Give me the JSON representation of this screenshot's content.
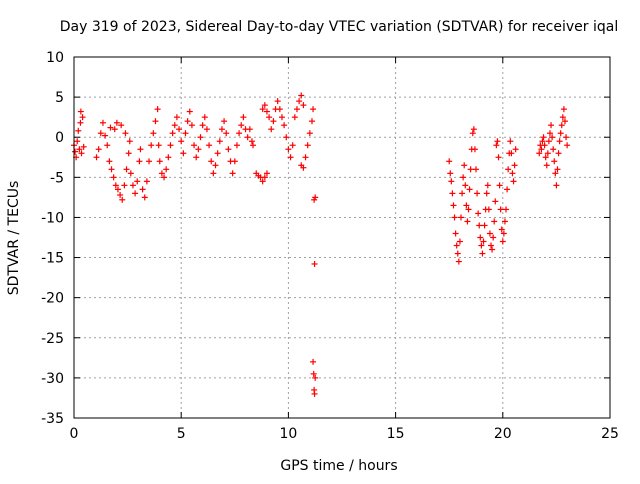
{
  "chart_data": {
    "type": "scatter",
    "title": "Day 319 of 2023, Sidereal Day-to-day VTEC variation (SDTVAR) for receiver iqal",
    "xlabel": "GPS time / hours",
    "ylabel": "SDTVAR / TECUs",
    "xlim": [
      0,
      25
    ],
    "ylim": [
      -35,
      10
    ],
    "xticks": [
      0,
      5,
      10,
      15,
      20,
      25
    ],
    "yticks": [
      10,
      5,
      0,
      -5,
      -10,
      -15,
      -20,
      -25,
      -30,
      -35
    ],
    "grid": true,
    "marker": "+",
    "series": [
      {
        "name": "SDTVAR",
        "color": "#ff0000",
        "points": [
          [
            0.0,
            -1.0
          ],
          [
            0.05,
            -1.8
          ],
          [
            0.1,
            -2.5
          ],
          [
            0.15,
            -0.5
          ],
          [
            0.2,
            0.8
          ],
          [
            0.25,
            -1.5
          ],
          [
            0.3,
            1.8
          ],
          [
            0.32,
            3.2
          ],
          [
            0.35,
            -2.0
          ],
          [
            0.4,
            2.5
          ],
          [
            0.45,
            -1.2
          ],
          [
            1.05,
            -2.5
          ],
          [
            1.15,
            -1.5
          ],
          [
            1.25,
            0.5
          ],
          [
            1.35,
            1.8
          ],
          [
            1.45,
            0.2
          ],
          [
            1.55,
            -1.0
          ],
          [
            1.65,
            -3.0
          ],
          [
            1.75,
            -4.0
          ],
          [
            1.85,
            -5.0
          ],
          [
            1.95,
            -6.0
          ],
          [
            2.05,
            -6.5
          ],
          [
            2.15,
            -7.2
          ],
          [
            2.25,
            -7.8
          ],
          [
            2.35,
            -6.0
          ],
          [
            2.45,
            -4.0
          ],
          [
            2.55,
            -2.0
          ],
          [
            2.65,
            -4.5
          ],
          [
            2.75,
            -6.0
          ],
          [
            2.85,
            -7.0
          ],
          [
            2.95,
            -5.5
          ],
          [
            3.05,
            -3.0
          ],
          [
            3.1,
            -1.5
          ],
          [
            1.7,
            1.2
          ],
          [
            1.9,
            1.0
          ],
          [
            2.0,
            1.8
          ],
          [
            2.2,
            1.5
          ],
          [
            2.4,
            0.5
          ],
          [
            2.6,
            -0.5
          ],
          [
            3.2,
            -6.5
          ],
          [
            3.3,
            -7.5
          ],
          [
            3.4,
            -5.5
          ],
          [
            3.5,
            -3.0
          ],
          [
            3.6,
            -1.0
          ],
          [
            3.7,
            0.5
          ],
          [
            3.8,
            2.0
          ],
          [
            3.9,
            3.5
          ],
          [
            3.95,
            -1.0
          ],
          [
            4.0,
            -3.0
          ],
          [
            4.1,
            -4.5
          ],
          [
            4.2,
            -5.0
          ],
          [
            4.3,
            -4.0
          ],
          [
            4.4,
            -2.5
          ],
          [
            4.5,
            -1.0
          ],
          [
            4.6,
            0.5
          ],
          [
            4.7,
            1.5
          ],
          [
            4.8,
            2.5
          ],
          [
            4.9,
            1.0
          ],
          [
            5.0,
            -0.5
          ],
          [
            5.1,
            -2.0
          ],
          [
            5.2,
            0.5
          ],
          [
            5.3,
            2.0
          ],
          [
            5.4,
            3.2
          ],
          [
            5.5,
            1.5
          ],
          [
            5.6,
            -1.0
          ],
          [
            5.7,
            -2.5
          ],
          [
            5.8,
            -1.5
          ],
          [
            5.9,
            0.0
          ],
          [
            6.0,
            1.5
          ],
          [
            6.1,
            2.5
          ],
          [
            6.2,
            1.0
          ],
          [
            6.3,
            -1.0
          ],
          [
            6.4,
            -3.0
          ],
          [
            6.5,
            -4.5
          ],
          [
            6.6,
            -3.5
          ],
          [
            6.7,
            -2.0
          ],
          [
            6.8,
            -0.5
          ],
          [
            6.9,
            1.0
          ],
          [
            7.0,
            2.0
          ],
          [
            7.1,
            0.5
          ],
          [
            7.2,
            -1.5
          ],
          [
            7.3,
            -3.0
          ],
          [
            7.4,
            -4.5
          ],
          [
            7.5,
            -3.0
          ],
          [
            7.6,
            -1.0
          ],
          [
            7.7,
            0.5
          ],
          [
            7.8,
            1.5
          ],
          [
            7.9,
            2.5
          ],
          [
            8.0,
            1.0
          ],
          [
            8.1,
            0.0
          ],
          [
            8.2,
            1.0
          ],
          [
            8.3,
            -0.5
          ],
          [
            8.35,
            -1.0
          ],
          [
            8.5,
            -4.5
          ],
          [
            8.6,
            -4.8
          ],
          [
            8.7,
            -5.0
          ],
          [
            8.8,
            -5.5
          ],
          [
            8.9,
            -5.0
          ],
          [
            9.0,
            -4.5
          ],
          [
            8.8,
            3.5
          ],
          [
            8.9,
            4.0
          ],
          [
            9.0,
            3.2
          ],
          [
            9.1,
            2.5
          ],
          [
            9.2,
            1.0
          ],
          [
            9.3,
            2.0
          ],
          [
            9.4,
            3.5
          ],
          [
            9.5,
            4.5
          ],
          [
            9.6,
            3.5
          ],
          [
            9.7,
            2.5
          ],
          [
            9.8,
            1.5
          ],
          [
            9.9,
            0.0
          ],
          [
            10.0,
            -1.5
          ],
          [
            10.1,
            -2.5
          ],
          [
            10.2,
            -1.0
          ],
          [
            10.3,
            2.5
          ],
          [
            10.4,
            3.5
          ],
          [
            10.5,
            4.5
          ],
          [
            10.6,
            5.2
          ],
          [
            10.7,
            4.0
          ],
          [
            10.6,
            -3.5
          ],
          [
            10.7,
            -3.8
          ],
          [
            10.8,
            -2.5
          ],
          [
            10.9,
            -1.0
          ],
          [
            11.0,
            0.5
          ],
          [
            11.1,
            2.0
          ],
          [
            11.15,
            3.5
          ],
          [
            11.2,
            -7.8
          ],
          [
            11.25,
            -7.5
          ],
          [
            11.22,
            -15.8
          ],
          [
            11.15,
            -28.0
          ],
          [
            11.18,
            -29.5
          ],
          [
            11.2,
            -31.5
          ],
          [
            11.22,
            -32.0
          ],
          [
            11.25,
            -30.0
          ],
          [
            17.5,
            -3.0
          ],
          [
            17.55,
            -4.5
          ],
          [
            17.6,
            -5.5
          ],
          [
            17.65,
            -7.0
          ],
          [
            17.7,
            -8.5
          ],
          [
            17.75,
            -10.0
          ],
          [
            17.8,
            -12.0
          ],
          [
            17.85,
            -13.5
          ],
          [
            17.9,
            -14.5
          ],
          [
            17.95,
            -15.5
          ],
          [
            18.0,
            -13.0
          ],
          [
            18.05,
            -10.0
          ],
          [
            18.1,
            -7.0
          ],
          [
            18.15,
            -5.0
          ],
          [
            18.2,
            -3.5
          ],
          [
            18.25,
            -6.0
          ],
          [
            18.3,
            -8.5
          ],
          [
            18.35,
            -10.5
          ],
          [
            18.4,
            -9.0
          ],
          [
            18.45,
            -6.5
          ],
          [
            18.5,
            -4.0
          ],
          [
            18.55,
            -1.5
          ],
          [
            18.6,
            0.5
          ],
          [
            18.65,
            1.0
          ],
          [
            18.7,
            -1.5
          ],
          [
            18.75,
            -4.0
          ],
          [
            18.8,
            -7.0
          ],
          [
            18.85,
            -9.5
          ],
          [
            18.9,
            -11.0
          ],
          [
            18.95,
            -12.5
          ],
          [
            19.0,
            -13.5
          ],
          [
            19.05,
            -14.5
          ],
          [
            19.1,
            -13.0
          ],
          [
            19.15,
            -11.0
          ],
          [
            19.2,
            -9.0
          ],
          [
            19.25,
            -7.0
          ],
          [
            19.3,
            -6.0
          ],
          [
            19.35,
            -9.0
          ],
          [
            19.4,
            -12.0
          ],
          [
            19.45,
            -13.5
          ],
          [
            19.5,
            -14.0
          ],
          [
            19.55,
            -12.5
          ],
          [
            19.6,
            -10.5
          ],
          [
            19.65,
            -8.0
          ],
          [
            19.7,
            -1.0
          ],
          [
            19.75,
            -0.5
          ],
          [
            19.8,
            -2.5
          ],
          [
            19.85,
            -6.0
          ],
          [
            19.9,
            -9.0
          ],
          [
            19.95,
            -11.5
          ],
          [
            20.0,
            -13.0
          ],
          [
            20.05,
            -12.0
          ],
          [
            20.1,
            -10.5
          ],
          [
            20.15,
            -9.0
          ],
          [
            20.2,
            -6.5
          ],
          [
            20.25,
            -4.0
          ],
          [
            20.3,
            -2.0
          ],
          [
            20.35,
            -0.5
          ],
          [
            20.4,
            -2.0
          ],
          [
            20.45,
            -4.5
          ],
          [
            20.5,
            -5.5
          ],
          [
            20.55,
            -3.5
          ],
          [
            20.6,
            -1.5
          ],
          [
            21.7,
            -2.0
          ],
          [
            21.75,
            -1.0
          ],
          [
            21.8,
            -1.5
          ],
          [
            21.85,
            -0.5
          ],
          [
            21.9,
            0.0
          ],
          [
            21.95,
            -1.0
          ],
          [
            22.0,
            -2.5
          ],
          [
            22.05,
            -3.5
          ],
          [
            22.1,
            -2.0
          ],
          [
            22.15,
            -0.5
          ],
          [
            22.2,
            0.5
          ],
          [
            22.25,
            1.5
          ],
          [
            22.3,
            0.0
          ],
          [
            22.35,
            -1.5
          ],
          [
            22.4,
            -3.0
          ],
          [
            22.45,
            -4.5
          ],
          [
            22.5,
            -6.0
          ],
          [
            22.55,
            -4.0
          ],
          [
            22.6,
            -2.0
          ],
          [
            22.65,
            -0.5
          ],
          [
            22.7,
            0.5
          ],
          [
            22.75,
            1.5
          ],
          [
            22.8,
            2.5
          ],
          [
            22.85,
            3.5
          ],
          [
            22.9,
            2.0
          ],
          [
            22.95,
            0.0
          ],
          [
            23.0,
            -1.0
          ]
        ]
      }
    ]
  }
}
